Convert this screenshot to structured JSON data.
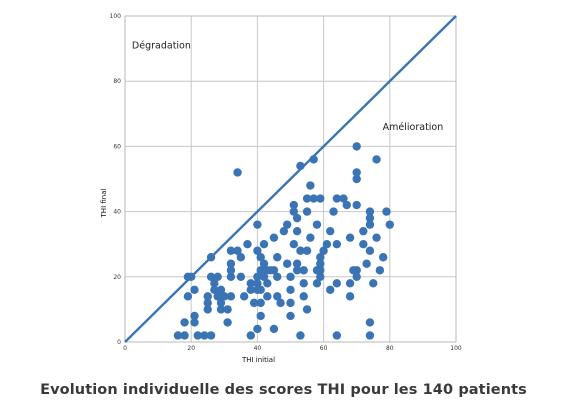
{
  "caption": "Evolution individuelle des scores THI pour les 140 patients",
  "chart_data": {
    "type": "scatter",
    "title": "",
    "xlabel": "THI initial",
    "ylabel": "THI final",
    "xlim": [
      0,
      100
    ],
    "ylim": [
      0,
      100
    ],
    "xticks": [
      0,
      20,
      40,
      60,
      80,
      100
    ],
    "yticks": [
      0,
      20,
      40,
      60,
      80,
      100
    ],
    "grid": true,
    "colors": {
      "points": "#3a74b4",
      "line": "#3a74b4",
      "grid": "#c8c8c8"
    },
    "reference_line": {
      "from": [
        0,
        0
      ],
      "to": [
        100,
        100
      ]
    },
    "annotations": [
      {
        "text": "Dégradation",
        "x": 11,
        "y": 90
      },
      {
        "text": "Amélioration",
        "x": 87,
        "y": 65
      }
    ],
    "points": [
      [
        16,
        2
      ],
      [
        18,
        6
      ],
      [
        18,
        2
      ],
      [
        19,
        14
      ],
      [
        19,
        20
      ],
      [
        20,
        20
      ],
      [
        21,
        8
      ],
      [
        21,
        6
      ],
      [
        21,
        16
      ],
      [
        22,
        2
      ],
      [
        24,
        2
      ],
      [
        25,
        12
      ],
      [
        25,
        10
      ],
      [
        25,
        14
      ],
      [
        26,
        20
      ],
      [
        26,
        2
      ],
      [
        26,
        26
      ],
      [
        27,
        18
      ],
      [
        27,
        16
      ],
      [
        28,
        20
      ],
      [
        28,
        14
      ],
      [
        29,
        12
      ],
      [
        29,
        10
      ],
      [
        29,
        16
      ],
      [
        30,
        14
      ],
      [
        31,
        6
      ],
      [
        31,
        10
      ],
      [
        32,
        14
      ],
      [
        32,
        28
      ],
      [
        32,
        24
      ],
      [
        32,
        22
      ],
      [
        32,
        20
      ],
      [
        34,
        28
      ],
      [
        34,
        52
      ],
      [
        35,
        20
      ],
      [
        35,
        26
      ],
      [
        36,
        14
      ],
      [
        37,
        30
      ],
      [
        38,
        2
      ],
      [
        38,
        16
      ],
      [
        38,
        18
      ],
      [
        39,
        12
      ],
      [
        40,
        20
      ],
      [
        40,
        4
      ],
      [
        40,
        18
      ],
      [
        40,
        16
      ],
      [
        40,
        28
      ],
      [
        40,
        36
      ],
      [
        41,
        26
      ],
      [
        41,
        22
      ],
      [
        41,
        16
      ],
      [
        41,
        12
      ],
      [
        41,
        8
      ],
      [
        42,
        30
      ],
      [
        42,
        24
      ],
      [
        42,
        20
      ],
      [
        43,
        18
      ],
      [
        43,
        14
      ],
      [
        43,
        22
      ],
      [
        44,
        22
      ],
      [
        45,
        32
      ],
      [
        45,
        4
      ],
      [
        45,
        22
      ],
      [
        46,
        26
      ],
      [
        46,
        20
      ],
      [
        46,
        14
      ],
      [
        47,
        12
      ],
      [
        48,
        34
      ],
      [
        49,
        36
      ],
      [
        49,
        24
      ],
      [
        50,
        12
      ],
      [
        50,
        20
      ],
      [
        50,
        16
      ],
      [
        50,
        8
      ],
      [
        51,
        42
      ],
      [
        51,
        40
      ],
      [
        51,
        30
      ],
      [
        52,
        38
      ],
      [
        52,
        22
      ],
      [
        52,
        34
      ],
      [
        52,
        24
      ],
      [
        53,
        54
      ],
      [
        53,
        28
      ],
      [
        53,
        2
      ],
      [
        54,
        18
      ],
      [
        54,
        22
      ],
      [
        54,
        14
      ],
      [
        55,
        44
      ],
      [
        55,
        40
      ],
      [
        55,
        10
      ],
      [
        55,
        28
      ],
      [
        56,
        32
      ],
      [
        56,
        48
      ],
      [
        57,
        56
      ],
      [
        57,
        44
      ],
      [
        58,
        36
      ],
      [
        58,
        22
      ],
      [
        58,
        18
      ],
      [
        59,
        26
      ],
      [
        59,
        44
      ],
      [
        59,
        20
      ],
      [
        59,
        22
      ],
      [
        59,
        24
      ],
      [
        60,
        28
      ],
      [
        61,
        30
      ],
      [
        62,
        16
      ],
      [
        62,
        34
      ],
      [
        63,
        40
      ],
      [
        64,
        44
      ],
      [
        64,
        30
      ],
      [
        64,
        18
      ],
      [
        64,
        2
      ],
      [
        66,
        44
      ],
      [
        67,
        42
      ],
      [
        68,
        32
      ],
      [
        68,
        18
      ],
      [
        68,
        14
      ],
      [
        69,
        22
      ],
      [
        70,
        60
      ],
      [
        70,
        50
      ],
      [
        70,
        52
      ],
      [
        70,
        42
      ],
      [
        70,
        22
      ],
      [
        70,
        20
      ],
      [
        72,
        34
      ],
      [
        72,
        30
      ],
      [
        73,
        24
      ],
      [
        74,
        40
      ],
      [
        74,
        38
      ],
      [
        74,
        36
      ],
      [
        74,
        28
      ],
      [
        74,
        6
      ],
      [
        74,
        2
      ],
      [
        75,
        18
      ],
      [
        76,
        56
      ],
      [
        76,
        32
      ],
      [
        77,
        22
      ],
      [
        78,
        26
      ],
      [
        79,
        40
      ],
      [
        80,
        36
      ]
    ]
  }
}
